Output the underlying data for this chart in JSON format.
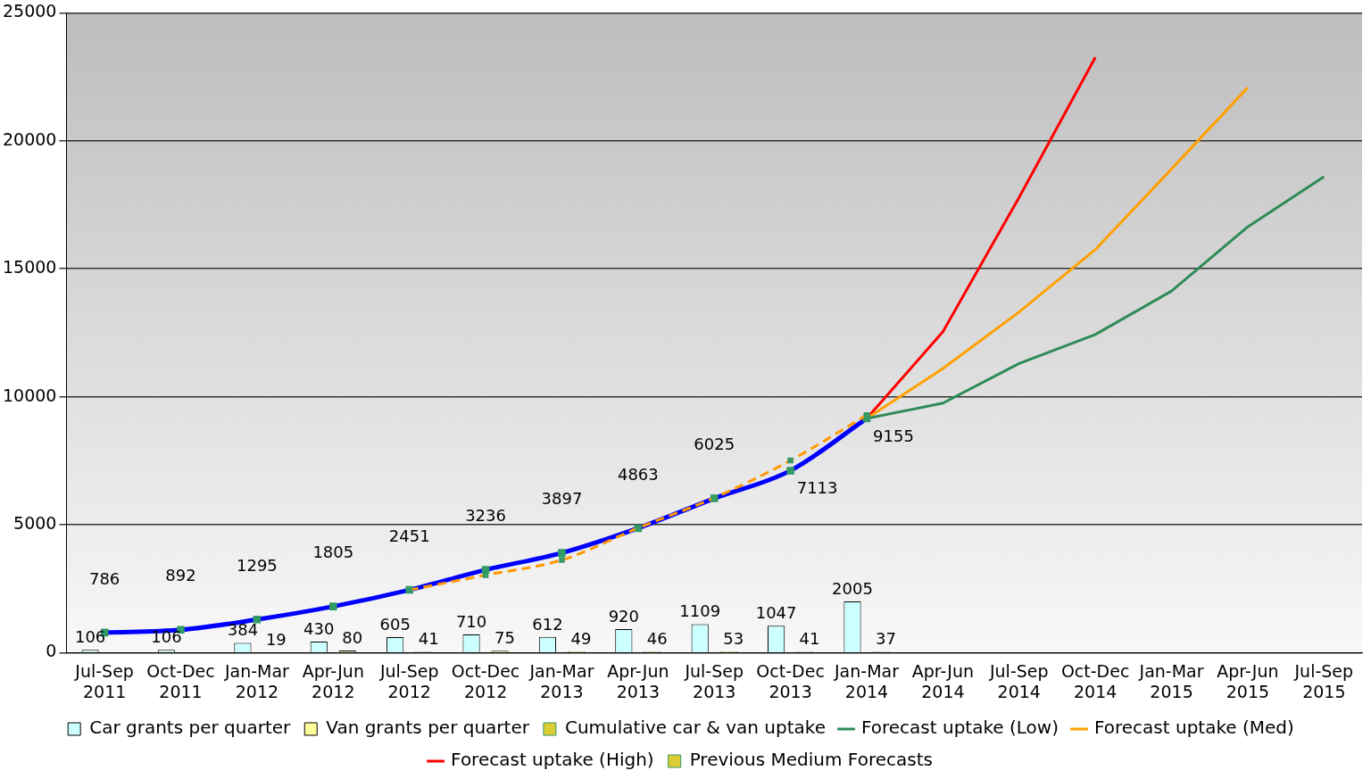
{
  "chart_data": {
    "type": "bar",
    "categories": [
      "Jul-Sep 2011",
      "Oct-Dec 2011",
      "Jan-Mar 2012",
      "Apr-Jun 2012",
      "Jul-Sep 2012",
      "Oct-Dec 2012",
      "Jan-Mar 2013",
      "Apr-Jun 2013",
      "Jul-Sep 2013",
      "Oct-Dec 2013",
      "Jan-Mar 2014",
      "Apr-Jun 2014",
      "Jul-Sep 2014",
      "Oct-Dec 2014",
      "Jan-Mar 2015",
      "Apr-Jun 2015",
      "Jul-Sep 2015"
    ],
    "series": [
      {
        "name": "Car grants per quarter",
        "color": "#ccffff",
        "values": [
          106,
          106,
          384,
          430,
          605,
          710,
          612,
          920,
          1109,
          1047,
          2005,
          null,
          null,
          null,
          null,
          null,
          null
        ],
        "value_labels": [
          "106",
          "106",
          "384",
          "430",
          "605",
          "710",
          "612",
          "920",
          "1109",
          "1047",
          "2005",
          null,
          null,
          null,
          null,
          null,
          null
        ]
      },
      {
        "name": "Van grants per quarter",
        "color": "#ffff99",
        "values": [
          null,
          null,
          19,
          80,
          41,
          75,
          49,
          46,
          53,
          41,
          37,
          null,
          null,
          null,
          null,
          null,
          null
        ],
        "value_labels": [
          null,
          null,
          "19",
          "80",
          "41",
          "75",
          "49",
          "46",
          "53",
          "41",
          "37",
          null,
          null,
          null,
          null,
          null,
          null
        ]
      },
      {
        "name": "Cumulative car & van uptake",
        "type": "line",
        "color": "#0000ff",
        "marker": "square",
        "values": [
          786,
          892,
          1295,
          1805,
          2451,
          3236,
          3897,
          4863,
          6025,
          7113,
          9155,
          null,
          null,
          null,
          null,
          null,
          null
        ],
        "value_labels": [
          "786",
          "892",
          "1295",
          "1805",
          "2451",
          "3236",
          "3897",
          "4863",
          "6025",
          "7113",
          "9155",
          null,
          null,
          null,
          null,
          null,
          null
        ]
      },
      {
        "name": "Forecast uptake (Low)",
        "type": "line",
        "color": "#2e8b57",
        "values": [
          null,
          null,
          null,
          null,
          null,
          null,
          null,
          null,
          null,
          null,
          9150,
          9750,
          11300,
          12430,
          14130,
          16640,
          18600
        ]
      },
      {
        "name": "Forecast uptake (Med)",
        "type": "line",
        "color": "#ffa000",
        "values": [
          null,
          null,
          null,
          null,
          null,
          null,
          null,
          null,
          null,
          null,
          9150,
          11100,
          13310,
          15750,
          18900,
          22080,
          null
        ]
      },
      {
        "name": "Forecast uptake (High)",
        "type": "line",
        "color": "#ff0000",
        "values": [
          null,
          null,
          null,
          null,
          null,
          null,
          null,
          null,
          null,
          null,
          9150,
          12540,
          17790,
          23260,
          null,
          null,
          null
        ]
      },
      {
        "name": "Previous Medium Forecasts",
        "type": "line",
        "color": "#ff9900",
        "marker": "square",
        "line_style": "dashed",
        "values": [
          null,
          null,
          null,
          null,
          2450,
          3030,
          3620,
          4870,
          6050,
          7510,
          9280,
          null,
          null,
          null,
          null,
          null,
          null
        ]
      }
    ],
    "ylim": [
      0,
      25000
    ],
    "yticks": [
      0,
      5000,
      10000,
      15000,
      20000,
      25000
    ],
    "grid": "y",
    "legend": "bottom"
  }
}
